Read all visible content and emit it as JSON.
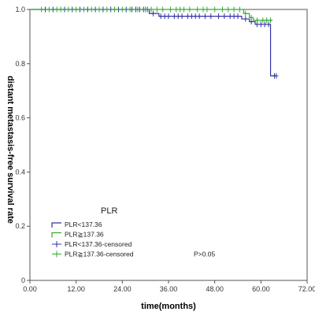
{
  "chart_data": {
    "type": "line",
    "subtype": "kaplan-meier",
    "title": "",
    "xlabel": "time(months)",
    "ylabel": "distant metastasis-free survival rate",
    "xlim": [
      0,
      72
    ],
    "ylim": [
      0,
      1.0
    ],
    "x_ticks": [
      "0.00",
      "12.00",
      "24.00",
      "36.00",
      "48.00",
      "60.00",
      "72.00"
    ],
    "y_ticks": [
      "0",
      "0.2",
      "0.4",
      "0.6",
      "0.8",
      "1.0"
    ],
    "grid": false,
    "legend": {
      "title": "PLR",
      "placement": "lower-left",
      "entries": [
        "PLR<137.36",
        "PLR≧137.36",
        "PLR<137.36-censored",
        "PLR≧137.36-censored"
      ],
      "note": "P>0.05"
    },
    "colors": {
      "group_low": "#3333aa",
      "group_high": "#33aa33"
    },
    "series": [
      {
        "name": "PLR<137.36",
        "color": "#3333aa",
        "steps": [
          [
            0,
            1.0
          ],
          [
            31,
            0.985
          ],
          [
            33.5,
            0.975
          ],
          [
            55,
            0.965
          ],
          [
            57,
            0.955
          ],
          [
            58.5,
            0.945
          ],
          [
            62.5,
            0.755
          ],
          [
            64,
            0.755
          ]
        ],
        "censored": [
          4,
          6,
          9,
          11,
          13,
          15,
          17,
          19,
          21,
          23,
          25,
          26.5,
          27.5,
          28.5,
          29.5,
          30.5,
          32,
          34,
          35,
          36,
          37.5,
          38.5,
          39.5,
          41,
          42,
          43,
          44,
          45.5,
          47,
          49,
          50.5,
          52,
          53,
          54,
          56,
          57.5,
          59,
          60,
          61,
          62,
          63.5,
          64
        ]
      },
      {
        "name": "PLR≧137.36",
        "color": "#33aa33",
        "steps": [
          [
            0,
            1.0
          ],
          [
            55.5,
            0.985
          ],
          [
            57,
            0.97
          ],
          [
            58,
            0.96
          ],
          [
            63,
            0.96
          ]
        ],
        "censored": [
          3,
          5,
          7,
          8,
          10,
          12,
          14,
          16,
          18,
          20,
          22,
          24,
          26,
          28,
          30,
          31.5,
          33,
          34.5,
          36.5,
          38,
          39,
          40,
          41.5,
          43.5,
          45,
          46,
          48,
          50,
          51.5,
          53,
          54.5,
          56,
          57.5,
          59,
          60.5,
          61.5,
          62.5
        ]
      }
    ]
  }
}
